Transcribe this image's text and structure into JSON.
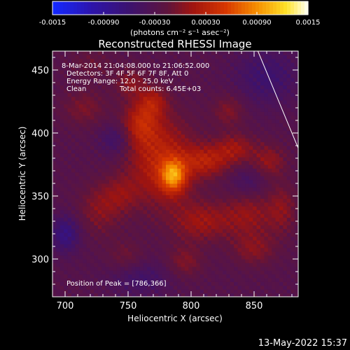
{
  "chart_data": {
    "type": "heatmap",
    "title": "Reconstructed RHESSI Image",
    "xlabel": "Heliocentric X (arcsec)",
    "ylabel": "Heliocentric Y (arcsec)",
    "xlim": [
      690,
      885
    ],
    "ylim": [
      270,
      465
    ],
    "x_ticks": [
      700,
      750,
      800,
      850
    ],
    "y_ticks": [
      300,
      350,
      400,
      450
    ],
    "x_tick_labels": [
      "700",
      "750",
      "800",
      "850"
    ],
    "y_tick_labels": [
      "300",
      "350",
      "400",
      "450"
    ],
    "colorbar": {
      "range": [
        -0.0015,
        0.0015
      ],
      "ticks": [
        -0.0015,
        -0.0009,
        -0.0003,
        0.0003,
        0.0009,
        0.0015
      ],
      "tick_labels": [
        "-0.0015",
        "-0.00090",
        "-0.00030",
        "0.00030",
        "0.00090",
        "0.0015"
      ],
      "unit_label": "(photons cm⁻² s⁻¹ asec⁻²)"
    },
    "annotations": [
      "8-Mar-2014 21:04:08.000 to 21:06:52.000",
      "Detectors: 3F 4F 5F 6F 7F 8F, Att 0",
      "Energy Range: 12.0 - 25.0 keV",
      "Clean",
      "Total counts: 6.45E+03",
      "Position of Peak = [786,366]"
    ],
    "peak": {
      "x": 786,
      "y": 366,
      "value": 0.0015
    },
    "sources": [
      {
        "x": 786,
        "y": 366,
        "sigma_x": 7,
        "sigma_y": 9,
        "amp": 0.0009
      },
      {
        "x": 776,
        "y": 378,
        "sigma_x": 18,
        "sigma_y": 24,
        "amp": 0.0006
      },
      {
        "x": 760,
        "y": 408,
        "sigma_x": 10,
        "sigma_y": 12,
        "amp": 0.0005
      },
      {
        "x": 770,
        "y": 425,
        "sigma_x": 8,
        "sigma_y": 8,
        "amp": 0.0004
      },
      {
        "x": 752,
        "y": 440,
        "sigma_x": 9,
        "sigma_y": 8,
        "amp": 0.0003
      },
      {
        "x": 812,
        "y": 378,
        "sigma_x": 13,
        "sigma_y": 9,
        "amp": 0.0005
      },
      {
        "x": 835,
        "y": 388,
        "sigma_x": 11,
        "sigma_y": 8,
        "amp": 0.0004
      },
      {
        "x": 862,
        "y": 378,
        "sigma_x": 9,
        "sigma_y": 9,
        "amp": 0.00035
      },
      {
        "x": 808,
        "y": 330,
        "sigma_x": 16,
        "sigma_y": 11,
        "amp": 0.0004
      },
      {
        "x": 845,
        "y": 335,
        "sigma_x": 14,
        "sigma_y": 12,
        "amp": 0.00035
      },
      {
        "x": 872,
        "y": 340,
        "sigma_x": 8,
        "sigma_y": 14,
        "amp": 0.0003
      },
      {
        "x": 850,
        "y": 308,
        "sigma_x": 12,
        "sigma_y": 9,
        "amp": 0.0003
      },
      {
        "x": 795,
        "y": 298,
        "sigma_x": 10,
        "sigma_y": 9,
        "amp": 0.00028
      },
      {
        "x": 728,
        "y": 340,
        "sigma_x": 12,
        "sigma_y": 14,
        "amp": 0.0003
      },
      {
        "x": 745,
        "y": 352,
        "sigma_x": 10,
        "sigma_y": 10,
        "amp": 0.00025
      },
      {
        "x": 715,
        "y": 420,
        "sigma_x": 12,
        "sigma_y": 10,
        "amp": 0.00025
      },
      {
        "x": 830,
        "y": 418,
        "sigma_x": 9,
        "sigma_y": 9,
        "amp": 0.00028
      },
      {
        "x": 748,
        "y": 302,
        "sigma_x": 10,
        "sigma_y": 9,
        "amp": 0.0002
      },
      {
        "x": 720,
        "y": 455,
        "sigma_x": 12,
        "sigma_y": 9,
        "amp": 0.00015
      },
      {
        "x": 740,
        "y": 395,
        "sigma_x": 9,
        "sigma_y": 9,
        "amp": -0.0003
      },
      {
        "x": 860,
        "y": 445,
        "sigma_x": 18,
        "sigma_y": 16,
        "amp": -0.0003
      },
      {
        "x": 700,
        "y": 320,
        "sigma_x": 8,
        "sigma_y": 10,
        "amp": -0.00045
      },
      {
        "x": 760,
        "y": 285,
        "sigma_x": 18,
        "sigma_y": 10,
        "amp": -0.00025
      },
      {
        "x": 845,
        "y": 362,
        "sigma_x": 10,
        "sigma_y": 8,
        "amp": -0.0002
      }
    ],
    "background": -0.00028,
    "limb": [
      {
        "x": 853,
        "y": 465
      },
      {
        "x": 885,
        "y": 388
      }
    ]
  },
  "footer": {
    "timestamp": "13-May-2022 15:37"
  },
  "colors": {
    "background": "#000000",
    "foreground": "#ffffff",
    "limb": "#ffffff"
  }
}
